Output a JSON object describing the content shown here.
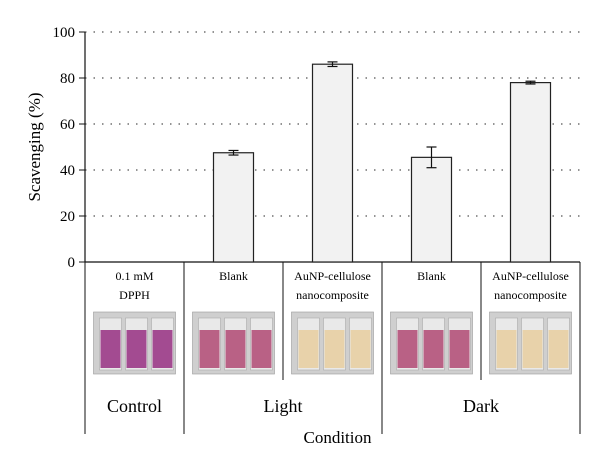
{
  "chart_data": {
    "type": "bar",
    "ylabel": "Scavenging (%)",
    "xlabel": "Condition",
    "ylim": [
      0,
      100
    ],
    "yticks": [
      0,
      20,
      40,
      60,
      80,
      100
    ],
    "grid": "horizontal dotted",
    "categories": [
      {
        "label": [
          "0.1 mM",
          "DPPH"
        ],
        "group": "Control",
        "value": null,
        "error": null
      },
      {
        "label": [
          "Blank"
        ],
        "group": "Light",
        "value": 47.5,
        "error": 1.0
      },
      {
        "label": [
          "AuNP-cellulose",
          "nanocomposite"
        ],
        "group": "Light",
        "value": 86,
        "error": 1.0
      },
      {
        "label": [
          "Blank"
        ],
        "group": "Dark",
        "value": 45.5,
        "error": 4.5
      },
      {
        "label": [
          "AuNP-cellulose",
          "nanocomposite"
        ],
        "group": "Dark",
        "value": 78,
        "error": 0.6
      }
    ],
    "groups": [
      "Control",
      "Light",
      "Dark"
    ],
    "bar_color": "#f2f2f2",
    "bar_edge": "#222222",
    "cuvette_colors": {
      "purple": "#9b3a87",
      "light_purple": "#b4527a",
      "pale_yellow": "#e8cfa3"
    },
    "photo_tints": [
      "purple",
      "light_purple",
      "pale_yellow",
      "light_purple",
      "pale_yellow"
    ]
  }
}
